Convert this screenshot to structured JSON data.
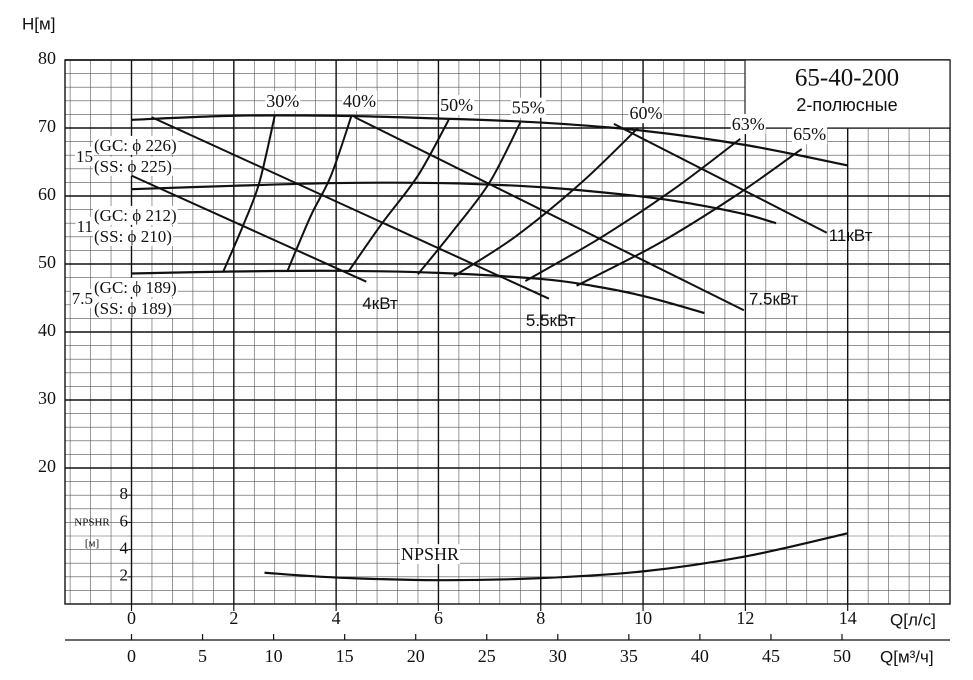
{
  "chart_data": {
    "type": "line",
    "title": "65-40-200",
    "subtitle": "2-полюсные",
    "y_label": "H[м]",
    "x_label": "Q[л/с]",
    "x2_label": "Q[м³/ч]",
    "y2_label": "NPSHR",
    "y2_unit": "[м]",
    "xlim": [
      -1.3,
      16
    ],
    "xticks": [
      0,
      2,
      4,
      6,
      8,
      10,
      12,
      14
    ],
    "x2lim": [
      -4.68,
      57.6
    ],
    "x2ticks": [
      0,
      5,
      10,
      15,
      20,
      25,
      30,
      35,
      40,
      45,
      50
    ],
    "ylim": [
      0,
      80
    ],
    "yticks": [
      20,
      30,
      40,
      50,
      60,
      70,
      80
    ],
    "y2lim": [
      0,
      40
    ],
    "y2ticks": [
      2,
      4,
      6,
      8
    ],
    "grid": true,
    "color": "#111111",
    "head_curves": [
      {
        "power": "15",
        "gc": "(GC: ϕ 226)",
        "ss": "(SS: ϕ 225)",
        "x": [
          0,
          2,
          4,
          6,
          8,
          10,
          12,
          14
        ],
        "values": [
          71.2,
          71.8,
          71.8,
          71.4,
          70.8,
          69.6,
          67.5,
          64.5
        ]
      },
      {
        "power": "11",
        "gc": "(GC: ϕ 212)",
        "ss": "(SS: ϕ 210)",
        "x": [
          0,
          2,
          4,
          6,
          8,
          10,
          11,
          12,
          12.6
        ],
        "values": [
          61,
          61.5,
          61.9,
          61.9,
          61.3,
          59.9,
          58.8,
          57.3,
          56
        ]
      },
      {
        "power": "7.5",
        "gc": "(GC: ϕ 189)",
        "ss": "(SS: ϕ 189)",
        "x": [
          0,
          2,
          4,
          6,
          8,
          9,
          10,
          11.2
        ],
        "values": [
          48.6,
          48.9,
          49,
          48.7,
          47.8,
          46.8,
          45.3,
          42.8
        ]
      }
    ],
    "efficiency_curves": [
      {
        "label": "30%",
        "x": [
          1.8,
          2.2,
          2.5,
          2.8
        ],
        "values": [
          49,
          56,
          62,
          71.8
        ]
      },
      {
        "label": "40%",
        "x": [
          3.05,
          3.5,
          3.9,
          4.3
        ],
        "values": [
          49,
          57,
          63,
          71.8
        ]
      },
      {
        "label": "50%",
        "x": [
          4.25,
          4.9,
          5.6,
          6.2
        ],
        "values": [
          49,
          56,
          63,
          71.2
        ]
      },
      {
        "label": "55%",
        "x": [
          5.6,
          6.3,
          7,
          7.6
        ],
        "values": [
          48.5,
          55,
          62,
          70.8
        ]
      },
      {
        "label": "60%",
        "x": [
          6.3,
          7.5,
          8.8,
          9.9
        ],
        "values": [
          48.2,
          54,
          62,
          70
        ]
      },
      {
        "label": "63%",
        "x": [
          7.7,
          9.2,
          10.6,
          11.9
        ],
        "values": [
          47.5,
          54,
          61,
          68.4
        ]
      },
      {
        "label": "65%",
        "x": [
          8.7,
          10.3,
          11.8,
          13.1
        ],
        "values": [
          46.8,
          53,
          60,
          66.9
        ]
      }
    ],
    "power_lines": [
      {
        "label": "4кВт",
        "x": [
          0,
          4.59
        ],
        "values": [
          63,
          47.4
        ]
      },
      {
        "label": "5.5кВт",
        "x": [
          0.39,
          8.16
        ],
        "values": [
          71.6,
          44.9
        ]
      },
      {
        "label": "7.5кВт",
        "x": [
          4.36,
          11.97
        ],
        "values": [
          71.6,
          43.2
        ]
      },
      {
        "label": "11кВт",
        "x": [
          9.43,
          13.59
        ],
        "values": [
          70.6,
          54.6
        ]
      }
    ],
    "npshr": {
      "label": "NPSHR",
      "axis": "y2",
      "x": [
        2.6,
        4,
        6,
        8,
        10,
        12,
        14
      ],
      "values": [
        2.3,
        1.95,
        1.75,
        1.9,
        2.4,
        3.5,
        5.2
      ]
    }
  }
}
